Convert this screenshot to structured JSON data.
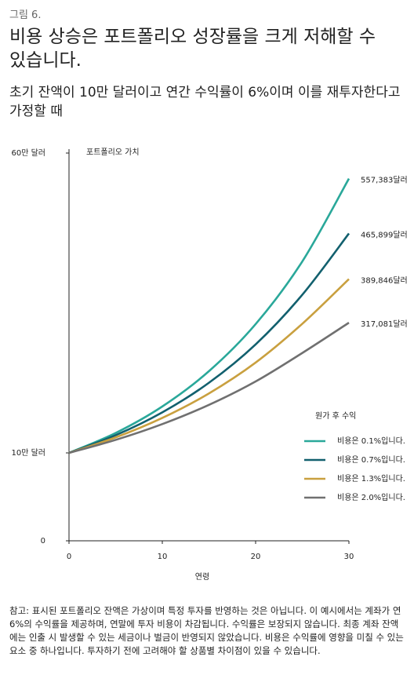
{
  "figure_label": "그림 6.",
  "headline": "비용 상승은 포트폴리오 성장률을 크게 저해할 수 있습니다.",
  "subtitle": "초기 잔액이 10만 달러이고 연간 수익률이 6%이며 이를 재투자한다고 가정할 때",
  "note": "참고: 표시된 포트폴리오 잔액은 가상이며 특정 투자를 반영하는 것은 아닙니다. 이 예시에서는 계좌가 연 6%의 수익률을 제공하며, 연말에 투자 비용이 차감됩니다. 수익률은 보장되지 않습니다. 최종 계좌 잔액에는 인출 시 발생할 수 있는 세금이나 벌금이 반영되지 않았습니다. 비용은 수익률에 영향을 미칠 수 있는 요소 중 하나입니다. 투자하기 전에 고려해야 할 상품별 차이점이 있을 수 있습니다.",
  "chart_data": {
    "type": "line",
    "y_label": "포트폴리오 가치",
    "x_label": "연령",
    "legend_title": "원가 후 수익",
    "x": [
      0,
      5,
      10,
      15,
      20,
      25,
      30
    ],
    "xlim": [
      0,
      30
    ],
    "xticks": [
      0,
      10,
      20,
      30
    ],
    "ylim": [
      0,
      600000
    ],
    "yticks": [
      0,
      {
        "value": 100000,
        "label": "10만 달러"
      },
      {
        "value": 600000,
        "label": "60만 달러"
      }
    ],
    "series": [
      {
        "name": "비용은 0.1%입니다.",
        "color": "#2aa89a",
        "values": [
          100000,
          133190,
          177400,
          236280,
          314710,
          419160,
          557383
        ],
        "value_labels": [
          null,
          null,
          null,
          null,
          null,
          null,
          "557,383달러"
        ]
      },
      {
        "name": "비용은 0.7%입니다.",
        "color": "#12606e",
        "values": [
          100000,
          129460,
          167600,
          216970,
          280910,
          363670,
          465899
        ],
        "value_labels": [
          null,
          null,
          null,
          null,
          null,
          null,
          "465,899달러"
        ]
      },
      {
        "name": "비용은 1.3%입니다.",
        "color": "#c9a03f",
        "values": [
          100000,
          125820,
          158290,
          199160,
          250570,
          315260,
          389846
        ],
        "value_labels": [
          null,
          null,
          null,
          null,
          null,
          null,
          "389,846달러"
        ]
      },
      {
        "name": "비용은 2.0%입니다.",
        "color": "#707070",
        "values": [
          100000,
          121670,
          148020,
          180090,
          219110,
          266580,
          317081
        ],
        "value_labels": [
          null,
          null,
          null,
          null,
          null,
          null,
          "317,081달러"
        ]
      }
    ]
  }
}
